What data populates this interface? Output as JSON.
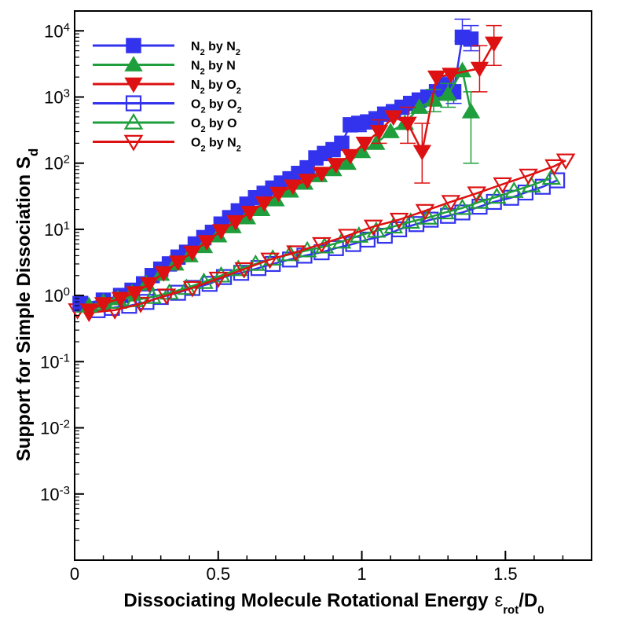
{
  "chart_data": {
    "type": "line",
    "xlabel": "Dissociating Molecule Rotational Energy",
    "xlabel_symbol": "ε",
    "xlabel_symbol_sub": "rot",
    "xlabel_denominator": "D",
    "xlabel_denominator_sub": "0",
    "ylabel": "Support for Simple Dissociation S",
    "ylabel_sub": "d",
    "xlim": [
      0,
      1.8
    ],
    "ylim_log10": [
      -4,
      4.3
    ],
    "x_ticks": [
      "0",
      "0.5",
      "1",
      "1.5"
    ],
    "x_tick_values": [
      0,
      0.5,
      1,
      1.5
    ],
    "y_tick_base": "10",
    "y_tick_exponents": [
      "-3",
      "-2",
      "-1",
      "0",
      "1",
      "2",
      "3",
      "4"
    ],
    "legend_position": "top-left",
    "series": [
      {
        "name": "N2 by N2",
        "mol": "N",
        "mol_sub": "2",
        "partner": "N",
        "partner_sub": "2",
        "color": "#3333ee",
        "marker": "square",
        "filled": true,
        "x": [
          0.02,
          0.1,
          0.16,
          0.2,
          0.24,
          0.27,
          0.3,
          0.33,
          0.36,
          0.39,
          0.42,
          0.45,
          0.48,
          0.51,
          0.54,
          0.57,
          0.6,
          0.63,
          0.66,
          0.69,
          0.72,
          0.75,
          0.78,
          0.81,
          0.84,
          0.87,
          0.9,
          0.93,
          0.96,
          0.99,
          1.02,
          1.05,
          1.08,
          1.11,
          1.14,
          1.17,
          1.2,
          1.23,
          1.26,
          1.29,
          1.32,
          1.35,
          1.38
        ],
        "y": [
          0.75,
          0.85,
          1.0,
          1.2,
          1.5,
          2.0,
          2.5,
          3.0,
          3.8,
          4.5,
          6.0,
          7.5,
          9.0,
          12,
          15,
          19,
          24,
          30,
          35,
          42,
          50,
          58,
          70,
          85,
          120,
          140,
          160,
          200,
          380,
          400,
          420,
          450,
          550,
          600,
          700,
          800,
          900,
          1000,
          1200,
          1500,
          1200,
          8000,
          7500
        ],
        "err": [
          [
            1.35,
            7000,
            15000
          ],
          [
            1.38,
            5000,
            12000
          ],
          [
            1.32,
            800,
            2500
          ],
          [
            1.29,
            900,
            2000
          ],
          [
            1.08,
            450,
            700
          ],
          [
            1.05,
            400,
            600
          ],
          [
            0.99,
            300,
            500
          ]
        ]
      },
      {
        "name": "N2 by N",
        "mol": "N",
        "mol_sub": "2",
        "partner": "N",
        "partner_sub": "",
        "color": "#1e9e3c",
        "marker": "triangle-up",
        "filled": true,
        "x": [
          0.05,
          0.1,
          0.15,
          0.2,
          0.25,
          0.3,
          0.35,
          0.4,
          0.45,
          0.5,
          0.55,
          0.6,
          0.65,
          0.7,
          0.75,
          0.8,
          0.85,
          0.9,
          0.95,
          1.0,
          1.05,
          1.1,
          1.15,
          1.2,
          1.25,
          1.3,
          1.35,
          1.38
        ],
        "y": [
          0.7,
          0.8,
          0.9,
          1.1,
          1.5,
          2.1,
          3.0,
          4.0,
          5.5,
          8.0,
          11,
          15,
          20,
          28,
          38,
          50,
          65,
          80,
          100,
          150,
          200,
          300,
          400,
          700,
          900,
          1100,
          2500,
          600
        ],
        "err": [
          [
            1.38,
            100,
            1200
          ],
          [
            1.3,
            700,
            1600
          ],
          [
            1.25,
            600,
            1300
          ]
        ]
      },
      {
        "name": "N2 by O2",
        "mol": "N",
        "mol_sub": "2",
        "partner": "O",
        "partner_sub": "2",
        "color": "#dd1111",
        "marker": "triangle-down",
        "filled": true,
        "x": [
          0.05,
          0.1,
          0.16,
          0.21,
          0.26,
          0.31,
          0.36,
          0.41,
          0.46,
          0.51,
          0.56,
          0.61,
          0.66,
          0.71,
          0.76,
          0.81,
          0.86,
          0.91,
          0.96,
          1.01,
          1.06,
          1.11,
          1.16,
          1.21,
          1.26,
          1.31,
          1.41,
          1.46
        ],
        "y": [
          0.6,
          0.75,
          0.9,
          1.1,
          1.5,
          2.2,
          3.2,
          4.5,
          6.5,
          9.5,
          13,
          18,
          25,
          35,
          45,
          55,
          70,
          95,
          130,
          200,
          300,
          500,
          400,
          150,
          2000,
          2200,
          2700,
          6500
        ],
        "err": [
          [
            1.21,
            50,
            400
          ],
          [
            1.16,
            200,
            700
          ],
          [
            1.46,
            3000,
            12000
          ],
          [
            1.41,
            1200,
            6000
          ],
          [
            1.06,
            200,
            450
          ]
        ]
      },
      {
        "name": "O2 by O2",
        "mol": "O",
        "mol_sub": "2",
        "partner": "O",
        "partner_sub": "2",
        "color": "#3333ee",
        "marker": "square",
        "filled": false,
        "x": [
          0.02,
          0.08,
          0.13,
          0.19,
          0.25,
          0.3,
          0.36,
          0.41,
          0.47,
          0.52,
          0.58,
          0.64,
          0.69,
          0.75,
          0.8,
          0.86,
          0.91,
          0.97,
          1.02,
          1.08,
          1.13,
          1.19,
          1.24,
          1.3,
          1.35,
          1.41,
          1.46,
          1.52,
          1.57,
          1.63,
          1.68
        ],
        "y": [
          0.75,
          0.6,
          0.65,
          0.7,
          0.8,
          0.95,
          1.1,
          1.3,
          1.5,
          1.9,
          2.2,
          2.6,
          3.0,
          3.5,
          4.0,
          4.5,
          5.2,
          6.0,
          7.0,
          8.0,
          10,
          12,
          14,
          16,
          18,
          22,
          26,
          30,
          36,
          44,
          55
        ]
      },
      {
        "name": "O2 by O",
        "mol": "O",
        "mol_sub": "2",
        "partner": "O",
        "partner_sub": "",
        "color": "#1e9e3c",
        "marker": "triangle-up",
        "filled": false,
        "x": [
          0.03,
          0.09,
          0.15,
          0.21,
          0.27,
          0.33,
          0.39,
          0.45,
          0.51,
          0.57,
          0.63,
          0.69,
          0.75,
          0.81,
          0.87,
          0.93,
          0.99,
          1.05,
          1.11,
          1.17,
          1.23,
          1.29,
          1.35,
          1.41,
          1.47,
          1.53,
          1.59,
          1.66
        ],
        "y": [
          0.7,
          0.75,
          0.8,
          0.85,
          0.95,
          1.1,
          1.3,
          1.6,
          2.0,
          2.5,
          3.0,
          3.6,
          4.2,
          4.8,
          5.5,
          6.5,
          8.0,
          9.5,
          11,
          13,
          15,
          18,
          21,
          26,
          31,
          38,
          46,
          60
        ]
      },
      {
        "name": "O2 by N2",
        "mol": "O",
        "mol_sub": "2",
        "partner": "N",
        "partner_sub": "2",
        "color": "#dd1111",
        "marker": "triangle-down",
        "filled": false,
        "x": [
          0.01,
          0.05,
          0.14,
          0.23,
          0.32,
          0.41,
          0.5,
          0.59,
          0.68,
          0.77,
          0.86,
          0.95,
          1.04,
          1.13,
          1.22,
          1.31,
          1.4,
          1.49,
          1.58,
          1.67,
          1.71
        ],
        "y": [
          0.6,
          0.55,
          0.6,
          0.75,
          1.0,
          1.3,
          1.8,
          2.5,
          3.5,
          4.5,
          6.0,
          8.0,
          11,
          14,
          19,
          26,
          35,
          48,
          65,
          90,
          110
        ]
      }
    ]
  }
}
